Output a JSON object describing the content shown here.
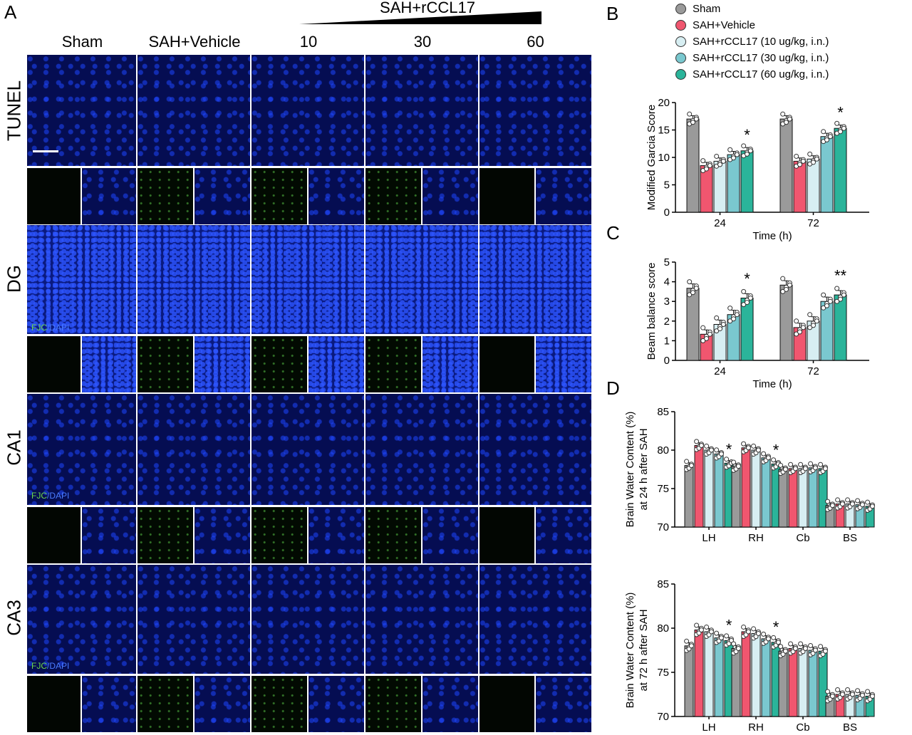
{
  "panelA": {
    "letter": "A",
    "gradient_label": "SAH+rCCL17",
    "columns": [
      "Sham",
      "SAH+Vehicle",
      "10",
      "30",
      "60"
    ],
    "rows": [
      "TUNEL",
      "DG",
      "CA1",
      "CA3"
    ],
    "stain_label_fjc": "FJC",
    "stain_label_dapi": "/DAPI"
  },
  "panelB": {
    "letter": "B"
  },
  "panelC": {
    "letter": "C"
  },
  "panelD": {
    "letter": "D"
  },
  "legend": [
    {
      "label": "Sham",
      "color": "#9a9a9a"
    },
    {
      "label": "SAH+Vehicle",
      "color": "#f0566f"
    },
    {
      "label": "SAH+rCCL17 (10 ug/kg, i.n.)",
      "color": "#d7eef2"
    },
    {
      "label": "SAH+rCCL17 (30 ug/kg, i.n.)",
      "color": "#7ac8cf"
    },
    {
      "label": "SAH+rCCL17 (60 ug/kg, i.n.)",
      "color": "#2bb49a"
    }
  ],
  "chart_data": [
    {
      "id": "B",
      "type": "bar",
      "ylabel": "Modified Garcia Score",
      "xlabel": "Time (h)",
      "categories": [
        "24",
        "72"
      ],
      "ylim": [
        0,
        20
      ],
      "yticks": [
        0,
        5,
        10,
        15,
        20
      ],
      "series": [
        {
          "name": "Sham",
          "values": [
            17.0,
            17.0
          ]
        },
        {
          "name": "SAH+Vehicle",
          "values": [
            8.5,
            9.3
          ]
        },
        {
          "name": "SAH+rCCL17 (10 ug/kg, i.n.)",
          "values": [
            9.3,
            9.7
          ]
        },
        {
          "name": "SAH+rCCL17 (30 ug/kg, i.n.)",
          "values": [
            10.5,
            13.8
          ]
        },
        {
          "name": "SAH+rCCL17 (60 ug/kg, i.n.)",
          "values": [
            11.2,
            15.3
          ]
        }
      ],
      "annotations": [
        {
          "category": "24",
          "series": 4,
          "text": "*"
        },
        {
          "category": "72",
          "series": 4,
          "text": "*"
        }
      ]
    },
    {
      "id": "C",
      "type": "bar",
      "ylabel": "Beam balance score",
      "xlabel": "Time (h)",
      "categories": [
        "24",
        "72"
      ],
      "ylim": [
        0,
        5
      ],
      "yticks": [
        0,
        1,
        2,
        3,
        4,
        5
      ],
      "series": [
        {
          "name": "Sham",
          "values": [
            3.67,
            3.83
          ]
        },
        {
          "name": "SAH+Vehicle",
          "values": [
            1.33,
            1.67
          ]
        },
        {
          "name": "SAH+rCCL17 (10 ug/kg, i.n.)",
          "values": [
            1.83,
            2.0
          ]
        },
        {
          "name": "SAH+rCCL17 (30 ug/kg, i.n.)",
          "values": [
            2.33,
            3.0
          ]
        },
        {
          "name": "SAH+rCCL17 (60 ug/kg, i.n.)",
          "values": [
            3.17,
            3.33
          ]
        }
      ],
      "annotations": [
        {
          "category": "24",
          "series": 4,
          "text": "*"
        },
        {
          "category": "72",
          "series": 4,
          "text": "**"
        }
      ]
    },
    {
      "id": "D-top",
      "type": "bar",
      "ylabel": "Brain Water Content (%)\nat 24 h after SAH",
      "xlabel": "",
      "categories": [
        "LH",
        "RH",
        "Cb",
        "BS"
      ],
      "ylim": [
        70,
        85
      ],
      "yticks": [
        70,
        75,
        80,
        85
      ],
      "series": [
        {
          "name": "Sham",
          "values": [
            78.0,
            77.9,
            77.5,
            72.8
          ]
        },
        {
          "name": "SAH+Vehicle",
          "values": [
            80.6,
            80.3,
            77.6,
            73.0
          ]
        },
        {
          "name": "SAH+rCCL17 (10 ug/kg, i.n.)",
          "values": [
            80.0,
            80.0,
            77.6,
            73.0
          ]
        },
        {
          "name": "SAH+rCCL17 (30 ug/kg, i.n.)",
          "values": [
            79.5,
            79.0,
            77.7,
            72.9
          ]
        },
        {
          "name": "SAH+rCCL17 (60 ug/kg, i.n.)",
          "values": [
            78.3,
            78.2,
            77.6,
            72.7
          ]
        }
      ],
      "annotations": [
        {
          "category": "LH",
          "series": 4,
          "text": "*"
        },
        {
          "category": "RH",
          "series": 4,
          "text": "*"
        }
      ]
    },
    {
      "id": "D-bottom",
      "type": "bar",
      "ylabel": "Brain Water Content (%)\nat 72 h after SAH",
      "xlabel": "",
      "categories": [
        "LH",
        "RH",
        "Cb",
        "BS"
      ],
      "ylim": [
        70,
        85
      ],
      "yticks": [
        70,
        75,
        80,
        85
      ],
      "series": [
        {
          "name": "Sham",
          "values": [
            78.0,
            77.7,
            77.4,
            72.3
          ]
        },
        {
          "name": "SAH+Vehicle",
          "values": [
            79.8,
            79.6,
            77.7,
            72.5
          ]
        },
        {
          "name": "SAH+rCCL17 (10 ug/kg, i.n.)",
          "values": [
            79.6,
            79.4,
            77.7,
            72.5
          ]
        },
        {
          "name": "SAH+rCCL17 (30 ug/kg, i.n.)",
          "values": [
            78.9,
            78.8,
            77.5,
            72.4
          ]
        },
        {
          "name": "SAH+rCCL17 (60 ug/kg, i.n.)",
          "values": [
            78.6,
            78.4,
            77.4,
            72.3
          ]
        }
      ],
      "annotations": [
        {
          "category": "LH",
          "series": 4,
          "text": "*"
        },
        {
          "category": "RH",
          "series": 4,
          "text": "*"
        }
      ]
    }
  ]
}
